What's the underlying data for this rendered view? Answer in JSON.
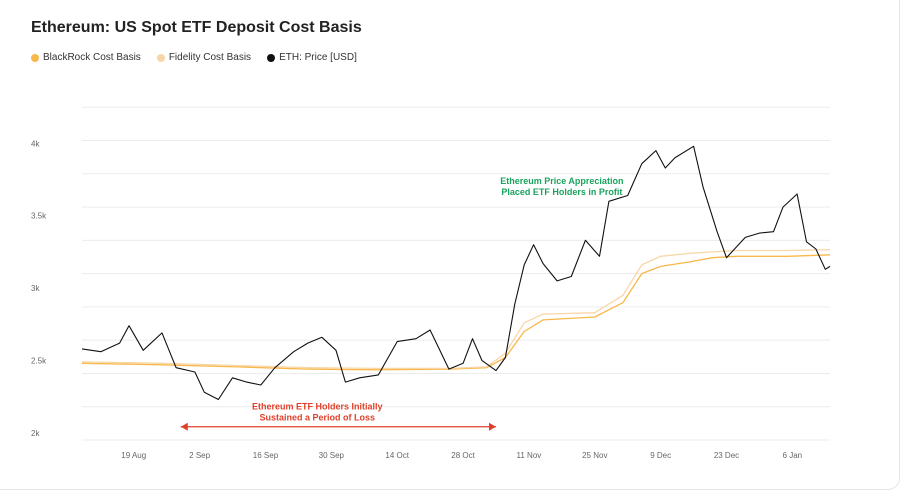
{
  "chart_data": {
    "type": "line",
    "title": "Ethereum: US Spot ETF Deposit Cost Basis",
    "xlabel": "",
    "ylabel": "",
    "x_range": [
      "2024-08-08",
      "2025-01-14"
    ],
    "ylim": [
      1950,
      4300
    ],
    "y_ticks": [
      2000,
      2500,
      3000,
      3500,
      4000
    ],
    "y_tick_labels": [
      "2k",
      "2.5k",
      "3k",
      "3.5k",
      "4k"
    ],
    "x_ticks": [
      "2024-08-19",
      "2024-09-02",
      "2024-09-16",
      "2024-09-30",
      "2024-10-14",
      "2024-10-28",
      "2024-11-11",
      "2024-11-25",
      "2024-12-09",
      "2024-12-23",
      "2025-01-06"
    ],
    "x_tick_labels": [
      "19 Aug",
      "2 Sep",
      "16 Sep",
      "30 Sep",
      "14 Oct",
      "28 Oct",
      "11 Nov",
      "25 Nov",
      "9 Dec",
      "23 Dec",
      "6 Jan"
    ],
    "grid": true,
    "legend_position": "top-left",
    "series": [
      {
        "name": "BlackRock Cost Basis",
        "color": "#f7b84b",
        "points": [
          [
            "2024-08-08",
            2480
          ],
          [
            "2024-08-25",
            2470
          ],
          [
            "2024-09-10",
            2455
          ],
          [
            "2024-09-25",
            2440
          ],
          [
            "2024-10-10",
            2435
          ],
          [
            "2024-10-25",
            2440
          ],
          [
            "2024-11-02",
            2450
          ],
          [
            "2024-11-06",
            2520
          ],
          [
            "2024-11-10",
            2700
          ],
          [
            "2024-11-14",
            2780
          ],
          [
            "2024-11-25",
            2800
          ],
          [
            "2024-12-01",
            2900
          ],
          [
            "2024-12-05",
            3100
          ],
          [
            "2024-12-09",
            3150
          ],
          [
            "2024-12-15",
            3180
          ],
          [
            "2024-12-20",
            3210
          ],
          [
            "2024-12-25",
            3220
          ],
          [
            "2025-01-05",
            3220
          ],
          [
            "2025-01-14",
            3230
          ]
        ]
      },
      {
        "name": "Fidelity Cost Basis",
        "color": "#f9d6a8",
        "points": [
          [
            "2024-08-08",
            2490
          ],
          [
            "2024-08-25",
            2480
          ],
          [
            "2024-09-10",
            2465
          ],
          [
            "2024-09-25",
            2450
          ],
          [
            "2024-10-10",
            2445
          ],
          [
            "2024-10-25",
            2445
          ],
          [
            "2024-11-02",
            2455
          ],
          [
            "2024-11-06",
            2550
          ],
          [
            "2024-11-10",
            2760
          ],
          [
            "2024-11-14",
            2820
          ],
          [
            "2024-11-25",
            2830
          ],
          [
            "2024-12-01",
            2950
          ],
          [
            "2024-12-05",
            3160
          ],
          [
            "2024-12-09",
            3220
          ],
          [
            "2024-12-15",
            3240
          ],
          [
            "2024-12-20",
            3250
          ],
          [
            "2024-12-25",
            3260
          ],
          [
            "2025-01-05",
            3260
          ],
          [
            "2025-01-14",
            3265
          ]
        ]
      },
      {
        "name": "ETH: Price [USD]",
        "color": "#111111",
        "points": [
          [
            "2024-08-08",
            2580
          ],
          [
            "2024-08-12",
            2560
          ],
          [
            "2024-08-16",
            2620
          ],
          [
            "2024-08-18",
            2740
          ],
          [
            "2024-08-21",
            2570
          ],
          [
            "2024-08-25",
            2690
          ],
          [
            "2024-08-28",
            2450
          ],
          [
            "2024-09-01",
            2420
          ],
          [
            "2024-09-03",
            2280
          ],
          [
            "2024-09-06",
            2230
          ],
          [
            "2024-09-09",
            2380
          ],
          [
            "2024-09-12",
            2350
          ],
          [
            "2024-09-15",
            2330
          ],
          [
            "2024-09-18",
            2450
          ],
          [
            "2024-09-22",
            2560
          ],
          [
            "2024-09-25",
            2620
          ],
          [
            "2024-09-28",
            2660
          ],
          [
            "2024-10-01",
            2570
          ],
          [
            "2024-10-03",
            2350
          ],
          [
            "2024-10-06",
            2380
          ],
          [
            "2024-10-10",
            2400
          ],
          [
            "2024-10-14",
            2630
          ],
          [
            "2024-10-18",
            2650
          ],
          [
            "2024-10-21",
            2710
          ],
          [
            "2024-10-25",
            2440
          ],
          [
            "2024-10-28",
            2480
          ],
          [
            "2024-10-30",
            2650
          ],
          [
            "2024-11-01",
            2500
          ],
          [
            "2024-11-04",
            2430
          ],
          [
            "2024-11-06",
            2520
          ],
          [
            "2024-11-08",
            2890
          ],
          [
            "2024-11-10",
            3160
          ],
          [
            "2024-11-12",
            3300
          ],
          [
            "2024-11-14",
            3170
          ],
          [
            "2024-11-17",
            3050
          ],
          [
            "2024-11-20",
            3080
          ],
          [
            "2024-11-23",
            3330
          ],
          [
            "2024-11-26",
            3220
          ],
          [
            "2024-11-28",
            3600
          ],
          [
            "2024-12-02",
            3640
          ],
          [
            "2024-12-05",
            3860
          ],
          [
            "2024-12-08",
            3950
          ],
          [
            "2024-12-10",
            3830
          ],
          [
            "2024-12-12",
            3900
          ],
          [
            "2024-12-16",
            3980
          ],
          [
            "2024-12-18",
            3700
          ],
          [
            "2024-12-21",
            3390
          ],
          [
            "2024-12-23",
            3210
          ],
          [
            "2024-12-27",
            3350
          ],
          [
            "2024-12-30",
            3380
          ],
          [
            "2025-01-02",
            3390
          ],
          [
            "2025-01-04",
            3560
          ],
          [
            "2025-01-07",
            3650
          ],
          [
            "2025-01-09",
            3320
          ],
          [
            "2025-01-11",
            3270
          ],
          [
            "2025-01-13",
            3130
          ],
          [
            "2025-01-14",
            3150
          ]
        ]
      }
    ],
    "annotations": [
      {
        "text_lines": [
          "Ethereum Price Appreciation",
          "Placed ETF Holders in Profit"
        ],
        "color": "#1aa35f",
        "x": "2024-11-18",
        "y": 3720
      },
      {
        "text_lines": [
          "Ethereum ETF Holders Initially",
          "Sustained a Period of Loss"
        ],
        "color": "#e0402b",
        "x": "2024-09-27",
        "y": 2160
      }
    ],
    "range_arrow": {
      "from": "2024-08-29",
      "to": "2024-11-04",
      "y": 2000,
      "color": "#e0402b"
    }
  }
}
